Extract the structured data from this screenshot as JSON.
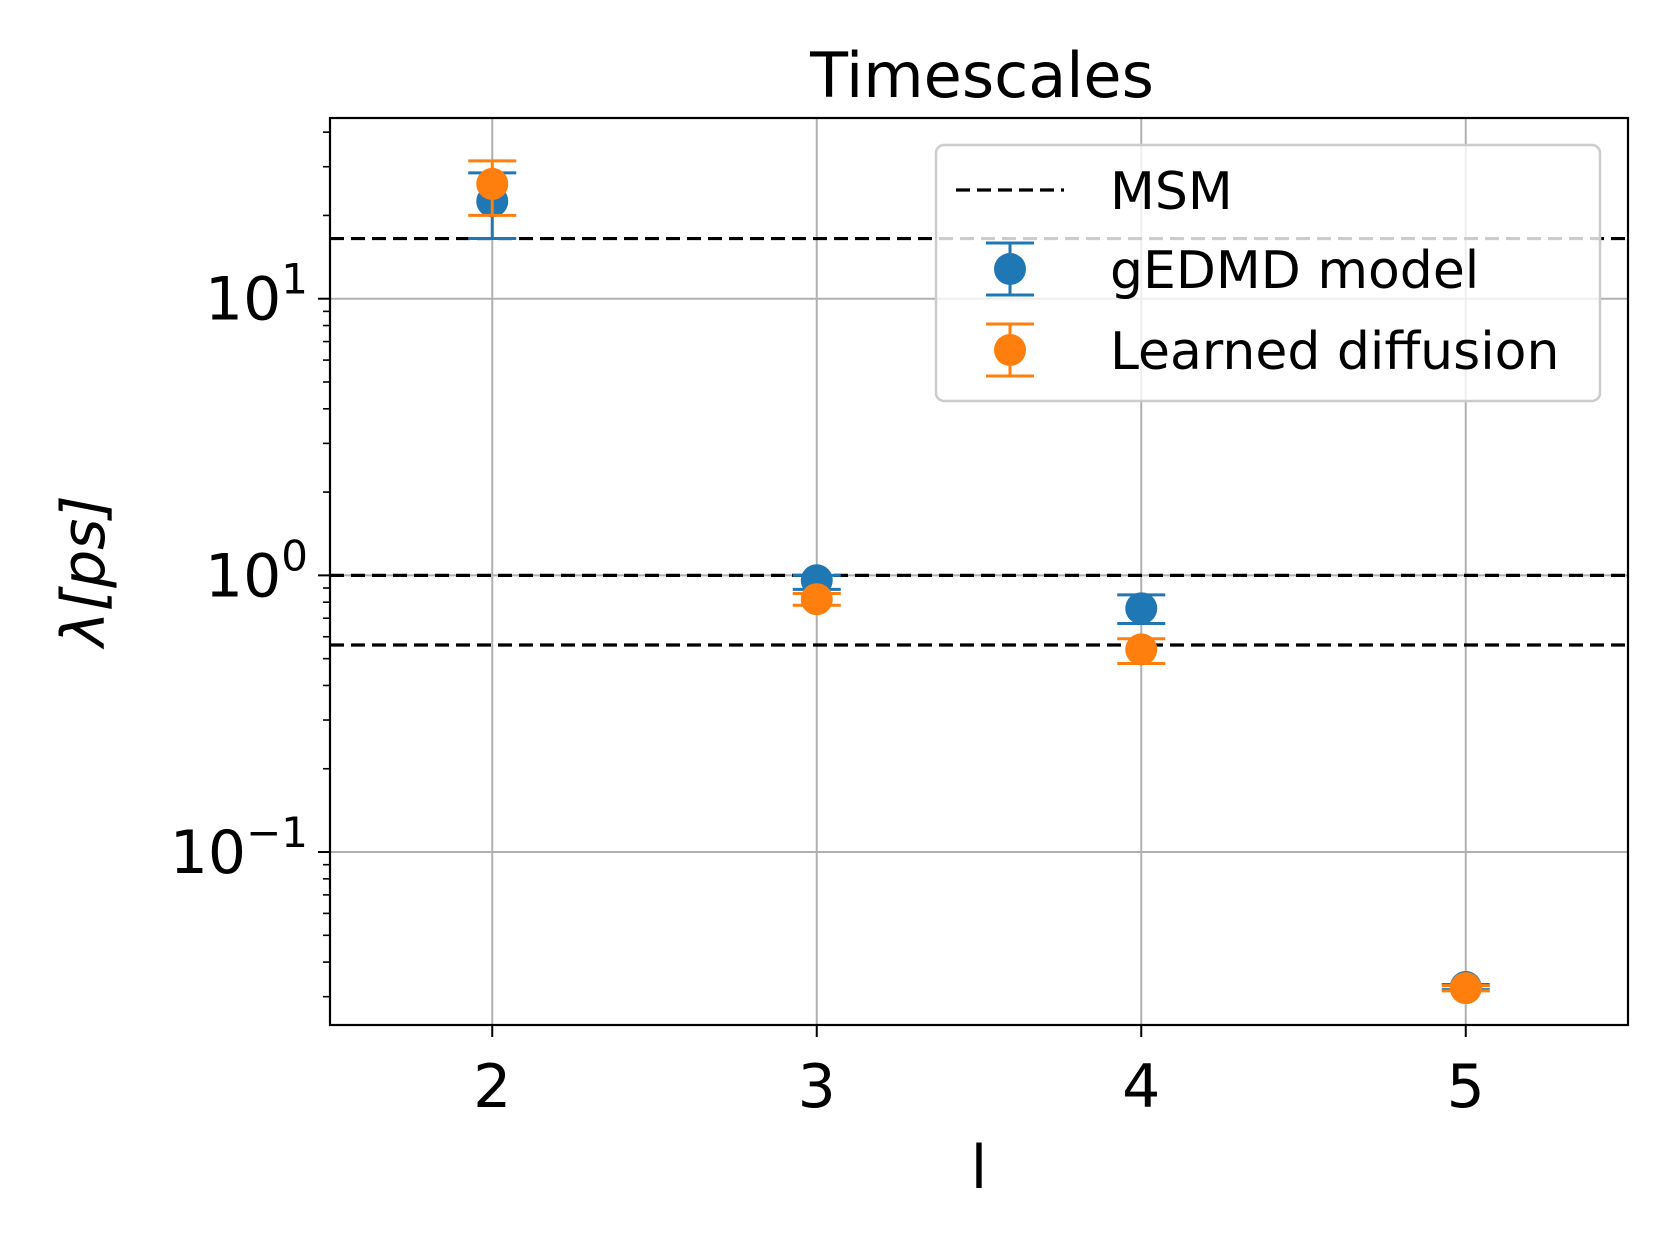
{
  "chart_data": {
    "type": "scatter",
    "title": "Timescales",
    "xlabel": "l",
    "ylabel": "λ[ps]",
    "y_scale": "log",
    "xlim": [
      1.5,
      5.5
    ],
    "ylim": [
      0.0237,
      45
    ],
    "grid": true,
    "x_ticks": [
      2,
      3,
      4,
      5
    ],
    "x_tick_labels": [
      "2",
      "3",
      "4",
      "5"
    ],
    "y_ticks": [
      {
        "value": 10,
        "base": "10",
        "exp": "1"
      },
      {
        "value": 1,
        "base": "10",
        "exp": "0"
      },
      {
        "value": 0.1,
        "base": "10",
        "exp": "−1"
      }
    ],
    "legend_position": "top-right",
    "msm_levels": [
      16.5,
      1.0,
      0.56
    ],
    "series": [
      {
        "name": "MSM",
        "kind": "hline",
        "color": "#000000"
      },
      {
        "name": "gEDMD model",
        "kind": "errorbar",
        "color": "#1f77b4",
        "points": [
          {
            "x": 2,
            "y": 22.5,
            "ylow": 16.5,
            "yhigh": 28.5
          },
          {
            "x": 3,
            "y": 0.96,
            "ylow": 0.89,
            "yhigh": 1.0
          },
          {
            "x": 4,
            "y": 0.76,
            "ylow": 0.67,
            "yhigh": 0.85
          },
          {
            "x": 5,
            "y": 0.0325,
            "ylow": 0.0318,
            "yhigh": 0.0332
          }
        ]
      },
      {
        "name": "Learned diffusion",
        "kind": "errorbar",
        "color": "#ff7f0e",
        "points": [
          {
            "x": 2,
            "y": 26.0,
            "ylow": 20.0,
            "yhigh": 31.5
          },
          {
            "x": 3,
            "y": 0.82,
            "ylow": 0.78,
            "yhigh": 0.86
          },
          {
            "x": 4,
            "y": 0.54,
            "ylow": 0.48,
            "yhigh": 0.59
          },
          {
            "x": 5,
            "y": 0.0322,
            "ylow": 0.0315,
            "yhigh": 0.0329
          }
        ]
      }
    ]
  }
}
